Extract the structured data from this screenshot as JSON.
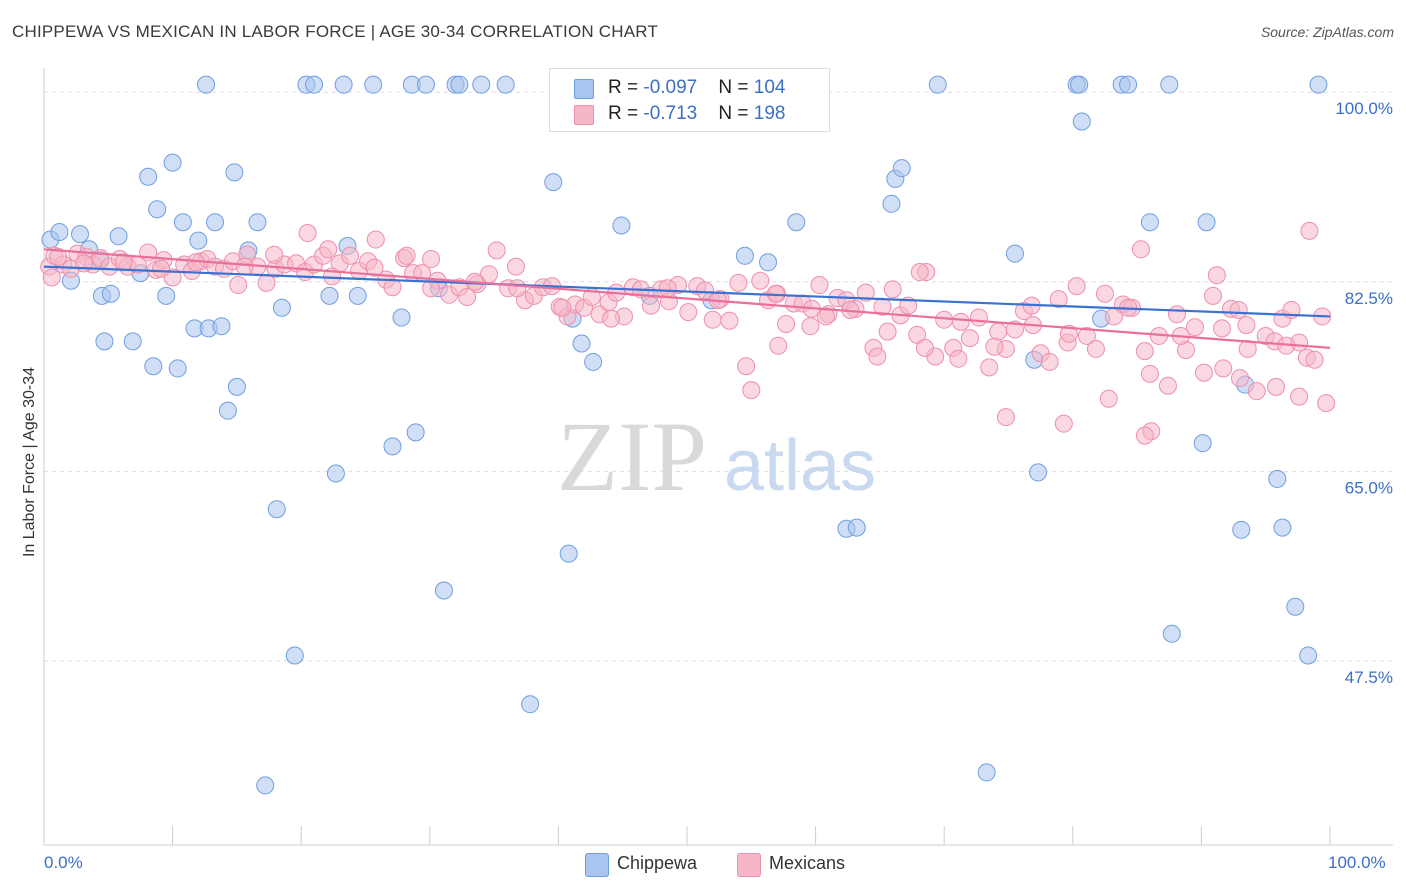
{
  "title": "CHIPPEWA VS MEXICAN IN LABOR FORCE | AGE 30-34 CORRELATION CHART",
  "source": "Source: ZipAtlas.com",
  "watermark": {
    "zip": "ZIP",
    "atlas": "atlas"
  },
  "legend_top": {
    "rows": [
      {
        "r_label": "R = ",
        "r_value": "-0.097",
        "n_label": "N = ",
        "n_value": "104",
        "color": "#a9c4ee"
      },
      {
        "r_label": "R = ",
        "r_value": "-0.713",
        "n_label": "N = ",
        "n_value": "198",
        "color": "#f5b6c8"
      }
    ]
  },
  "legend_bottom": [
    {
      "label": "Chippewa",
      "color": "#a9c4ee"
    },
    {
      "label": "Mexicans",
      "color": "#f5b6c8"
    }
  ],
  "chart_data": {
    "type": "scatter",
    "title": "CHIPPEWA VS MEXICAN IN LABOR FORCE | AGE 30-34 CORRELATION CHART",
    "xlabel": "",
    "ylabel": "In Labor Force | Age 30-34",
    "x_tick_labels": {
      "left": "0.0%",
      "right": "100.0%"
    },
    "y_tick_labels": [
      "100.0%",
      "82.5%",
      "65.0%",
      "47.5%"
    ],
    "y_ticks": [
      100.0,
      82.5,
      65.0,
      47.5
    ],
    "xlim": [
      0,
      100
    ],
    "ylim": [
      30.5,
      101.5
    ],
    "grid": true,
    "legend_position": "top-center",
    "series": [
      {
        "name": "Chippewa",
        "color": "#a9c4ee",
        "stroke": "#6f9ee0",
        "trend_color": "#3a72d2",
        "trend": [
          [
            0,
            83.9
          ],
          [
            100,
            79.3
          ]
        ],
        "points": [
          [
            0.5,
            86.4
          ],
          [
            1.2,
            87.1
          ],
          [
            2.1,
            82.6
          ],
          [
            2.8,
            86.9
          ],
          [
            3.5,
            85.5
          ],
          [
            4.4,
            84.5
          ],
          [
            4.5,
            81.2
          ],
          [
            4.7,
            77.0
          ],
          [
            5.2,
            81.4
          ],
          [
            5.8,
            86.7
          ],
          [
            6.9,
            77.0
          ],
          [
            7.5,
            83.3
          ],
          [
            8.1,
            92.2
          ],
          [
            8.5,
            74.7
          ],
          [
            8.8,
            89.2
          ],
          [
            9.5,
            81.2
          ],
          [
            10.0,
            93.5
          ],
          [
            10.4,
            74.5
          ],
          [
            10.8,
            88.0
          ],
          [
            11.7,
            78.2
          ],
          [
            12.0,
            86.3
          ],
          [
            12.6,
            100.7
          ],
          [
            12.8,
            78.2
          ],
          [
            13.3,
            88.0
          ],
          [
            13.8,
            78.4
          ],
          [
            14.3,
            70.6
          ],
          [
            14.8,
            92.6
          ],
          [
            15.0,
            72.8
          ],
          [
            15.9,
            85.4
          ],
          [
            16.6,
            88.0
          ],
          [
            17.2,
            36.0
          ],
          [
            18.1,
            61.5
          ],
          [
            18.5,
            80.1
          ],
          [
            19.5,
            48.0
          ],
          [
            20.4,
            100.7
          ],
          [
            21.0,
            100.7
          ],
          [
            22.2,
            81.2
          ],
          [
            22.7,
            64.8
          ],
          [
            23.3,
            100.7
          ],
          [
            23.6,
            85.8
          ],
          [
            24.4,
            81.2
          ],
          [
            25.6,
            100.7
          ],
          [
            27.1,
            67.3
          ],
          [
            27.8,
            79.2
          ],
          [
            28.6,
            100.7
          ],
          [
            28.9,
            68.6
          ],
          [
            29.7,
            100.7
          ],
          [
            30.7,
            81.9
          ],
          [
            31.1,
            54.0
          ],
          [
            32.0,
            100.7
          ],
          [
            32.3,
            100.7
          ],
          [
            34.0,
            100.7
          ],
          [
            35.9,
            100.7
          ],
          [
            37.8,
            43.5
          ],
          [
            39.6,
            91.7
          ],
          [
            40.8,
            57.4
          ],
          [
            41.1,
            79.1
          ],
          [
            41.8,
            76.8
          ],
          [
            42.7,
            75.1
          ],
          [
            44.9,
            87.7
          ],
          [
            47.1,
            81.2
          ],
          [
            47.8,
            100.7
          ],
          [
            51.3,
            100.7
          ],
          [
            51.9,
            80.8
          ],
          [
            54.1,
            100.7
          ],
          [
            54.5,
            84.9
          ],
          [
            56.3,
            84.3
          ],
          [
            58.5,
            88.0
          ],
          [
            60.4,
            100.7
          ],
          [
            62.4,
            59.7
          ],
          [
            63.2,
            59.8
          ],
          [
            65.9,
            89.7
          ],
          [
            66.2,
            92.0
          ],
          [
            66.7,
            93.0
          ],
          [
            69.5,
            100.7
          ],
          [
            73.3,
            37.2
          ],
          [
            75.5,
            85.1
          ],
          [
            77.0,
            75.3
          ],
          [
            77.3,
            64.9
          ],
          [
            80.3,
            100.7
          ],
          [
            80.5,
            100.7
          ],
          [
            80.7,
            97.3
          ],
          [
            82.2,
            79.1
          ],
          [
            83.8,
            100.7
          ],
          [
            84.3,
            100.7
          ],
          [
            86.0,
            88.0
          ],
          [
            87.5,
            100.7
          ],
          [
            87.7,
            50.0
          ],
          [
            90.1,
            67.6
          ],
          [
            90.4,
            88.0
          ],
          [
            93.1,
            59.6
          ],
          [
            93.4,
            73.0
          ],
          [
            95.9,
            64.3
          ],
          [
            96.3,
            59.8
          ],
          [
            97.3,
            52.5
          ],
          [
            99.1,
            100.7
          ],
          [
            98.3,
            48.0
          ]
        ]
      },
      {
        "name": "Mexicans",
        "color": "#f5b6c8",
        "stroke": "#ee8fac",
        "trend_color": "#e8709a",
        "trend": [
          [
            0,
            85.5
          ],
          [
            100,
            76.4
          ]
        ],
        "points": [
          [
            0.4,
            83.9
          ],
          [
            0.8,
            84.9
          ],
          [
            1.5,
            84.1
          ],
          [
            2.1,
            83.7
          ],
          [
            2.6,
            85.1
          ],
          [
            3.3,
            84.8
          ],
          [
            3.8,
            84.1
          ],
          [
            4.4,
            84.7
          ],
          [
            5.1,
            83.9
          ],
          [
            5.9,
            84.6
          ],
          [
            6.5,
            83.9
          ],
          [
            7.3,
            84.1
          ],
          [
            8.1,
            85.2
          ],
          [
            8.7,
            83.6
          ],
          [
            9.3,
            84.5
          ],
          [
            10.0,
            82.9
          ],
          [
            10.9,
            84.1
          ],
          [
            11.5,
            83.5
          ],
          [
            12.2,
            84.4
          ],
          [
            12.7,
            84.6
          ],
          [
            13.3,
            83.9
          ],
          [
            14.0,
            83.7
          ],
          [
            14.7,
            84.4
          ],
          [
            15.1,
            82.2
          ],
          [
            15.8,
            85.0
          ],
          [
            16.6,
            83.9
          ],
          [
            17.3,
            82.4
          ],
          [
            18.0,
            83.7
          ],
          [
            18.7,
            84.1
          ],
          [
            19.6,
            84.2
          ],
          [
            20.3,
            83.4
          ],
          [
            21.0,
            84.1
          ],
          [
            21.7,
            84.9
          ],
          [
            22.4,
            83.0
          ],
          [
            23.0,
            84.2
          ],
          [
            23.8,
            84.9
          ],
          [
            24.5,
            83.5
          ],
          [
            25.2,
            84.4
          ],
          [
            25.8,
            86.4
          ],
          [
            26.6,
            82.7
          ],
          [
            27.1,
            82.0
          ],
          [
            28.0,
            84.7
          ],
          [
            28.7,
            83.3
          ],
          [
            29.4,
            83.3
          ],
          [
            30.1,
            84.6
          ],
          [
            30.6,
            82.6
          ],
          [
            31.5,
            81.3
          ],
          [
            32.3,
            82.0
          ],
          [
            32.9,
            81.1
          ],
          [
            33.7,
            82.3
          ],
          [
            34.6,
            83.2
          ],
          [
            35.2,
            85.4
          ],
          [
            36.1,
            81.9
          ],
          [
            36.7,
            83.9
          ],
          [
            37.4,
            80.8
          ],
          [
            38.1,
            81.2
          ],
          [
            38.8,
            82.0
          ],
          [
            39.5,
            82.1
          ],
          [
            40.1,
            80.2
          ],
          [
            40.7,
            79.3
          ],
          [
            41.3,
            80.4
          ],
          [
            42.0,
            80.1
          ],
          [
            42.6,
            81.1
          ],
          [
            43.2,
            79.5
          ],
          [
            43.9,
            80.6
          ],
          [
            44.5,
            81.5
          ],
          [
            45.1,
            79.3
          ],
          [
            45.8,
            82.0
          ],
          [
            46.4,
            81.8
          ],
          [
            47.2,
            80.3
          ],
          [
            48.0,
            81.8
          ],
          [
            48.6,
            80.7
          ],
          [
            49.3,
            82.2
          ],
          [
            50.1,
            79.7
          ],
          [
            50.8,
            82.1
          ],
          [
            51.4,
            81.7
          ],
          [
            52.0,
            79.0
          ],
          [
            52.6,
            80.9
          ],
          [
            53.3,
            78.9
          ],
          [
            54.0,
            82.4
          ],
          [
            54.6,
            74.7
          ],
          [
            55.0,
            72.5
          ],
          [
            55.7,
            82.6
          ],
          [
            56.3,
            80.8
          ],
          [
            57.0,
            81.4
          ],
          [
            57.7,
            78.6
          ],
          [
            58.3,
            80.5
          ],
          [
            59.0,
            80.5
          ],
          [
            59.7,
            80.0
          ],
          [
            60.3,
            82.2
          ],
          [
            61.0,
            79.5
          ],
          [
            61.7,
            81.0
          ],
          [
            62.4,
            80.8
          ],
          [
            63.1,
            80.0
          ],
          [
            63.9,
            81.5
          ],
          [
            64.5,
            76.4
          ],
          [
            65.2,
            80.2
          ],
          [
            66.0,
            81.8
          ],
          [
            66.6,
            79.4
          ],
          [
            67.2,
            80.3
          ],
          [
            67.9,
            77.6
          ],
          [
            68.6,
            83.4
          ],
          [
            69.3,
            75.6
          ],
          [
            70.0,
            79.0
          ],
          [
            70.7,
            76.4
          ],
          [
            71.3,
            78.8
          ],
          [
            72.0,
            77.3
          ],
          [
            72.7,
            79.2
          ],
          [
            73.5,
            74.6
          ],
          [
            74.2,
            77.9
          ],
          [
            74.8,
            76.3
          ],
          [
            75.5,
            78.1
          ],
          [
            76.2,
            79.8
          ],
          [
            76.8,
            80.3
          ],
          [
            77.5,
            75.9
          ],
          [
            78.2,
            75.1
          ],
          [
            78.9,
            80.9
          ],
          [
            79.6,
            76.9
          ],
          [
            80.3,
            82.1
          ],
          [
            81.1,
            77.5
          ],
          [
            81.8,
            76.3
          ],
          [
            82.5,
            81.4
          ],
          [
            83.2,
            79.3
          ],
          [
            83.9,
            80.4
          ],
          [
            84.6,
            80.1
          ],
          [
            85.3,
            85.5
          ],
          [
            86.0,
            74.0
          ],
          [
            86.7,
            77.5
          ],
          [
            87.4,
            72.9
          ],
          [
            88.1,
            79.5
          ],
          [
            88.8,
            76.2
          ],
          [
            89.5,
            78.3
          ],
          [
            90.2,
            74.1
          ],
          [
            90.9,
            81.2
          ],
          [
            91.6,
            78.2
          ],
          [
            92.3,
            80.0
          ],
          [
            92.9,
            79.9
          ],
          [
            93.6,
            76.3
          ],
          [
            94.3,
            72.4
          ],
          [
            95.0,
            77.5
          ],
          [
            95.7,
            77.0
          ],
          [
            96.3,
            79.1
          ],
          [
            97.0,
            79.9
          ],
          [
            97.6,
            76.9
          ],
          [
            98.2,
            75.5
          ],
          [
            98.8,
            75.3
          ],
          [
            99.4,
            79.3
          ],
          [
            99.7,
            71.3
          ],
          [
            97.6,
            71.9
          ],
          [
            93.0,
            73.6
          ],
          [
            91.2,
            83.1
          ],
          [
            86.1,
            68.7
          ],
          [
            85.6,
            68.3
          ],
          [
            84.3,
            80.1
          ],
          [
            79.3,
            69.4
          ],
          [
            74.8,
            70.0
          ],
          [
            68.1,
            83.4
          ],
          [
            64.8,
            75.6
          ],
          [
            60.8,
            79.3
          ],
          [
            57.1,
            76.6
          ],
          [
            52.4,
            80.8
          ],
          [
            48.5,
            81.9
          ],
          [
            44.1,
            79.1
          ],
          [
            40.3,
            80.1
          ],
          [
            36.8,
            81.9
          ],
          [
            33.5,
            82.5
          ],
          [
            30.1,
            81.9
          ],
          [
            28.2,
            84.9
          ],
          [
            25.7,
            83.8
          ],
          [
            22.1,
            85.5
          ],
          [
            20.5,
            87.0
          ],
          [
            17.9,
            85.0
          ],
          [
            15.6,
            83.9
          ],
          [
            11.8,
            84.3
          ],
          [
            9.1,
            83.7
          ],
          [
            6.2,
            84.3
          ],
          [
            3.1,
            84.2
          ],
          [
            1.1,
            84.8
          ],
          [
            0.6,
            82.9
          ],
          [
            93.5,
            78.5
          ],
          [
            95.8,
            72.8
          ],
          [
            98.4,
            87.2
          ],
          [
            96.6,
            76.6
          ],
          [
            91.7,
            74.5
          ],
          [
            88.4,
            77.5
          ],
          [
            85.6,
            76.1
          ],
          [
            82.8,
            71.7
          ],
          [
            79.7,
            77.7
          ],
          [
            76.9,
            78.5
          ],
          [
            73.9,
            76.5
          ],
          [
            71.1,
            75.4
          ],
          [
            68.5,
            76.4
          ],
          [
            65.6,
            77.9
          ],
          [
            62.7,
            79.9
          ],
          [
            59.6,
            78.4
          ],
          [
            56.9,
            81.4
          ]
        ]
      }
    ]
  }
}
